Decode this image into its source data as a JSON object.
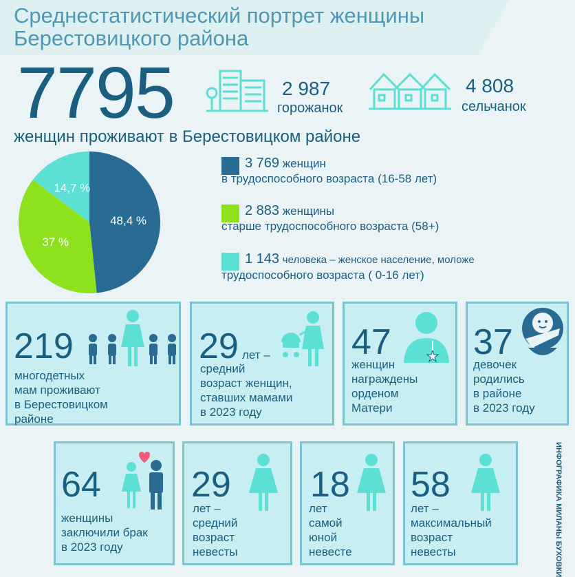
{
  "title_line1": "Среднестатистический портрет женщины",
  "title_line2": "Берестовицкого района",
  "total": "7795",
  "subline": "женщин проживают в Берестовицком  районе",
  "urban": {
    "value": "2 987",
    "label": "горожанок",
    "icon": "city-buildings-icon"
  },
  "rural": {
    "value": "4 808",
    "label": "сельчанок",
    "icon": "village-houses-icon"
  },
  "colors": {
    "dark": "#2a6b93",
    "green": "#8ee21d",
    "cyan": "#5ce0d4",
    "card_bg": "#c7eef1"
  },
  "chart_data": {
    "type": "pie",
    "slices": [
      {
        "label": "48,4 %",
        "value": 48.4,
        "color": "#2a6b93"
      },
      {
        "label": "37 %",
        "value": 37,
        "color": "#8ee21d"
      },
      {
        "label": "14,7 %",
        "value": 14.7,
        "color": "#5ce0d4"
      }
    ]
  },
  "legend": [
    {
      "num": "3 769",
      "line1": "женщин",
      "line2": "в трудоспособного возраста (16-58 лет)"
    },
    {
      "num": "2 883",
      "line1": "женщины",
      "line2": "старше трудоспособного возраста (58+)"
    },
    {
      "num": "1 143",
      "line1": "человека – женское население, моложе",
      "line2": "трудоспособного возраста ( 0-16 лет)"
    }
  ],
  "cards_row1": [
    {
      "num": "219",
      "lines": [
        "многодетных",
        "мам проживают",
        "в Берестовицком",
        "районе"
      ],
      "icon": "mother-children-icon"
    },
    {
      "num": "29",
      "suffix": "лет –",
      "lines": [
        "средний",
        "возраст женщин,",
        "ставших мамами",
        "в 2023 году"
      ],
      "icon": "mother-stroller-icon"
    },
    {
      "num": "47",
      "lines": [
        "женщин",
        "награждены",
        "орденом",
        "Матери"
      ],
      "icon": "woman-medal-icon"
    },
    {
      "num": "37",
      "lines": [
        "девочек",
        "родились",
        "в районе",
        "в 2023 году"
      ],
      "icon": "baby-icon"
    }
  ],
  "cards_row2": [
    {
      "num": "64",
      "lines": [
        "женщины",
        "заключили брак",
        "в 2023 году"
      ],
      "icon": "couple-heart-icon"
    },
    {
      "num": "29",
      "lines": [
        "лет –",
        "средний",
        "возраст",
        "невесты"
      ],
      "icon": "bride-icon"
    },
    {
      "num": "18",
      "lines": [
        "лет",
        "самой",
        "юной",
        "невесте"
      ],
      "icon": "bride-icon"
    },
    {
      "num": "58",
      "lines": [
        "лет –",
        "максимальный",
        "возраст",
        "невесты"
      ],
      "icon": "bride-icon"
    }
  ],
  "credit": "ИНФОГРАФИКА МИЛАНЫ БУХОВКИ"
}
